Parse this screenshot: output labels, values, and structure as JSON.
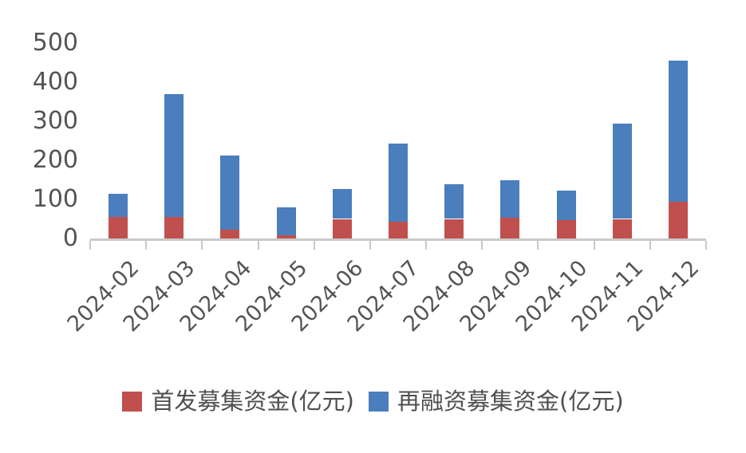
{
  "chart_data": {
    "type": "bar",
    "stacked": true,
    "title": "",
    "xlabel": "",
    "ylabel": "",
    "categories": [
      "2024-02",
      "2024-03",
      "2024-04",
      "2024-05",
      "2024-06",
      "2024-07",
      "2024-08",
      "2024-09",
      "2024-10",
      "2024-11",
      "2024-12"
    ],
    "series": [
      {
        "name": "首发募集资金(亿元)",
        "color": "#C0504D",
        "values": [
          55,
          55,
          22,
          8,
          50,
          43,
          50,
          53,
          47,
          50,
          93
        ]
      },
      {
        "name": "再融资募集资金(亿元)",
        "color": "#4A7EBD",
        "values": [
          60,
          315,
          190,
          72,
          77,
          200,
          88,
          95,
          75,
          243,
          362
        ]
      }
    ],
    "totals": [
      115,
      370,
      212,
      80,
      127,
      243,
      138,
      148,
      122,
      293,
      455
    ],
    "ylim": [
      0,
      500
    ],
    "yticks": [
      0,
      100,
      200,
      300,
      400,
      500
    ],
    "grid": false,
    "legend_position": "bottom",
    "axis_color": "#C9C9C9",
    "text_color": "#545454",
    "background_color": "#FFFFFF"
  }
}
